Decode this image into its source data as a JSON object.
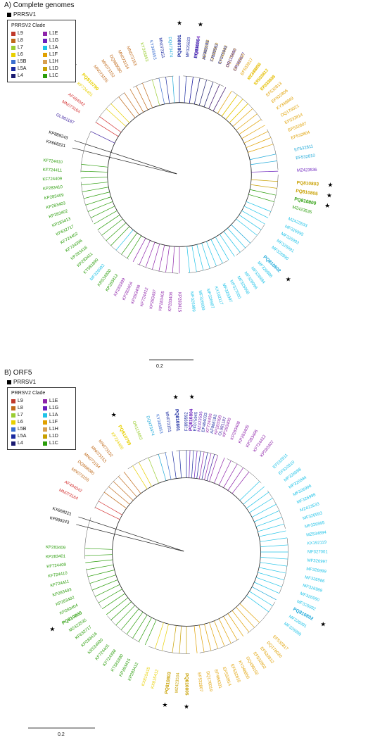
{
  "panelA": {
    "title": "A) Complete genomes",
    "legend_prrsv1": "PRRSV1",
    "legend_title": "PRRSV2 Clade",
    "scale": "0.2",
    "center": [
      255,
      248
    ],
    "radius": 165,
    "tips": [
      {
        "t": "PQ810804",
        "c": "#6a1fbd",
        "a": -82,
        "b": true,
        "s": true
      },
      {
        "t": "MZ423536",
        "c": "#b8860b",
        "a": -78
      },
      {
        "t": "EF532810",
        "c": "#e0a000",
        "a": -74
      },
      {
        "t": "KY348852",
        "c": "#e0a000",
        "a": -70
      },
      {
        "t": "DQ176019",
        "c": "#e0a000",
        "a": -66
      },
      {
        "t": "EF532815",
        "c": "#e0a000",
        "a": -62
      },
      {
        "t": "EF532817",
        "c": "#e0a000",
        "a": -58
      },
      {
        "t": "KY348850",
        "c": "#e0a000",
        "a": -54
      },
      {
        "t": "EF532812",
        "c": "#e0a000",
        "a": -50
      },
      {
        "t": "EF532809",
        "c": "#e0a000",
        "a": -46
      },
      {
        "t": "EF532813",
        "c": "#e0a000",
        "a": -42
      },
      {
        "t": "EF532806",
        "c": "#e0a000",
        "a": -38
      },
      {
        "t": "KY348849",
        "c": "#e0a000",
        "a": -34
      },
      {
        "t": "DQ176021",
        "c": "#e0a000",
        "a": -30
      },
      {
        "t": "EF532814",
        "c": "#e0a000",
        "a": -26
      },
      {
        "t": "EF532807",
        "c": "#e0a000",
        "a": -22
      },
      {
        "t": "EF532804",
        "c": "#e0a000",
        "a": -18
      },
      {
        "t": "EF532811",
        "c": "#1fa9d9",
        "a": -12
      },
      {
        "t": "EF532810",
        "c": "#1fa9d9",
        "a": -8
      },
      {
        "t": "MZ423536",
        "c": "#6a1fbd",
        "a": -2
      },
      {
        "t": "PQ810803",
        "c": "#c8a000",
        "a": 4,
        "b": true,
        "s": true
      },
      {
        "t": "PQ810805",
        "c": "#c8a000",
        "a": 8,
        "b": true,
        "s": true
      },
      {
        "t": "PQ810800",
        "c": "#2a9d0a",
        "a": 12,
        "b": true,
        "s": true
      },
      {
        "t": "MZ423535",
        "c": "#2a9d0a",
        "a": 16
      },
      {
        "t": "MZ423533",
        "c": "#1fc3e8",
        "a": 22
      },
      {
        "t": "MF326995",
        "c": "#1fc3e8",
        "a": 26
      },
      {
        "t": "MF326993",
        "c": "#1fc3e8",
        "a": 30
      },
      {
        "t": "MF326991",
        "c": "#1fc3e8",
        "a": 34
      },
      {
        "t": "MF326990",
        "c": "#1fc3e8",
        "a": 38
      },
      {
        "t": "PQ810802",
        "c": "#1fa9d9",
        "a": 44,
        "b": true,
        "s": true
      },
      {
        "t": "MF326988",
        "c": "#1fc3e8",
        "a": 48
      },
      {
        "t": "MF326994",
        "c": "#1fc3e8",
        "a": 52
      },
      {
        "t": "MF326996",
        "c": "#1fc3e8",
        "a": 56
      },
      {
        "t": "MF326998",
        "c": "#1fc3e8",
        "a": 60
      },
      {
        "t": "MF327000",
        "c": "#1fc3e8",
        "a": 64
      },
      {
        "t": "MF326997",
        "c": "#1fc3e8",
        "a": 68
      },
      {
        "t": "KX192117",
        "c": "#1fc3e8",
        "a": 72
      },
      {
        "t": "MF326987",
        "c": "#1fc3e8",
        "a": 76
      },
      {
        "t": "MF326999",
        "c": "#1fc3e8",
        "a": 80
      },
      {
        "t": "MF326989",
        "c": "#1fc3e8",
        "a": 84
      },
      {
        "t": "KP283415",
        "c": "#8e24aa",
        "a": 90
      },
      {
        "t": "KP283406",
        "c": "#8e24aa",
        "a": 94
      },
      {
        "t": "KP283405",
        "c": "#8e24aa",
        "a": 98
      },
      {
        "t": "KP283407",
        "c": "#8e24aa",
        "a": 102
      },
      {
        "t": "KF724412",
        "c": "#8e24aa",
        "a": 106
      },
      {
        "t": "KP283408",
        "c": "#8e24aa",
        "a": 110
      },
      {
        "t": "KP283404",
        "c": "#8e24aa",
        "a": 114
      },
      {
        "t": "KP283399",
        "c": "#8e24aa",
        "a": 118
      },
      {
        "t": "KP283412",
        "c": "#2a9d0a",
        "a": 122
      },
      {
        "t": "KR534930",
        "c": "#2a9d0a",
        "a": 126
      },
      {
        "t": "MF326992",
        "c": "#1fc3e8",
        "a": 130
      },
      {
        "t": "KT581890",
        "c": "#2a9d0a",
        "a": 134
      },
      {
        "t": "KP283411",
        "c": "#2a9d0a",
        "a": 138
      },
      {
        "t": "KP283416",
        "c": "#2a9d0a",
        "a": 142
      },
      {
        "t": "KF724396",
        "c": "#2a9d0a",
        "a": 146
      },
      {
        "t": "KF724402",
        "c": "#2a9d0a",
        "a": 150
      },
      {
        "t": "KF632717",
        "c": "#2a9d0a",
        "a": 154
      },
      {
        "t": "KP283413",
        "c": "#2a9d0a",
        "a": 158
      },
      {
        "t": "KP283402",
        "c": "#2a9d0a",
        "a": 162
      },
      {
        "t": "KP283403",
        "c": "#2a9d0a",
        "a": 166
      },
      {
        "t": "KP283409",
        "c": "#2a9d0a",
        "a": 170
      },
      {
        "t": "KP283410",
        "c": "#2a9d0a",
        "a": 174
      },
      {
        "t": "KF724409",
        "c": "#2a9d0a",
        "a": 178
      },
      {
        "t": "KF724411",
        "c": "#2a9d0a",
        "a": 182
      },
      {
        "t": "KF724410",
        "c": "#2a9d0a",
        "a": 186
      },
      {
        "t": "KX668221",
        "c": "#000000",
        "a": 194
      },
      {
        "t": "KP889243",
        "c": "#000000",
        "a": 198
      },
      {
        "t": "OL981187",
        "c": "#3b1e9e",
        "a": 206
      },
      {
        "t": "MN073164",
        "c": "#d32f2f",
        "a": 212
      },
      {
        "t": "AF494042",
        "c": "#d32f2f",
        "a": 216
      },
      {
        "t": "KF724401",
        "c": "#e8d000",
        "a": 222
      },
      {
        "t": "PQ810799",
        "c": "#e8d000",
        "a": 226,
        "b": true,
        "s": true
      },
      {
        "t": "MN073155",
        "c": "#c06a1a",
        "a": 232
      },
      {
        "t": "MN073152",
        "c": "#c06a1a",
        "a": 236
      },
      {
        "t": "DQ988080",
        "c": "#c06a1a",
        "a": 240
      },
      {
        "t": "MN073154",
        "c": "#c06a1a",
        "a": 244
      },
      {
        "t": "MN073153",
        "c": "#c06a1a",
        "a": 248
      },
      {
        "t": "KY348853",
        "c": "#9acd32",
        "a": 254
      },
      {
        "t": "KY348853",
        "c": "#3b6fd0",
        "a": 258
      },
      {
        "t": "MN073151",
        "c": "#1a2aa0",
        "a": 262
      },
      {
        "t": "DQ473474",
        "c": "#1fa9d9",
        "a": 266
      },
      {
        "t": "PQ810801",
        "c": "#1a2aa0",
        "a": 270,
        "b": true,
        "s": true
      },
      {
        "t": "MF326633",
        "c": "#1a2aa0",
        "a": 274
      },
      {
        "t": "EF484033",
        "c": "#1a2aa0",
        "a": 278
      },
      {
        "t": "AF066183",
        "c": "#1a2aa0",
        "a": 282
      },
      {
        "t": "FJ899592",
        "c": "#1a2aa0",
        "a": 286
      },
      {
        "t": "EF075945",
        "c": "#1a2aa0",
        "a": 290
      },
      {
        "t": "OR115680",
        "c": "#3b1e9e",
        "a": 294
      },
      {
        "t": "OR365677",
        "c": "#3b1e9e",
        "a": 298
      },
      {
        "t": "MZ433234",
        "c": "#e8d000",
        "a": 306
      },
      {
        "t": "KX815412",
        "c": "#e8d000",
        "a": 310
      },
      {
        "t": "KX815415",
        "c": "#e8d000",
        "a": 314
      }
    ]
  },
  "panelB": {
    "title": "B) ORF5",
    "legend_prrsv1": "PRRSV1",
    "legend_title": "PRRSV2 Clade",
    "scale": "0.2",
    "center": [
      265,
      262
    ],
    "radius": 170,
    "tips": [
      {
        "t": "PQ810804",
        "c": "#6a1fbd",
        "a": -88,
        "b": true,
        "s": true
      },
      {
        "t": "MZ423536",
        "c": "#6a1fbd",
        "a": -84
      },
      {
        "t": "KF724406",
        "c": "#8e24aa",
        "a": -80
      },
      {
        "t": "KP283399",
        "c": "#8e24aa",
        "a": -76
      },
      {
        "t": "KP283400",
        "c": "#8e24aa",
        "a": -72
      },
      {
        "t": "KP283408",
        "c": "#8e24aa",
        "a": -68
      },
      {
        "t": "KP283405",
        "c": "#8e24aa",
        "a": -64
      },
      {
        "t": "KP283406",
        "c": "#8e24aa",
        "a": -60
      },
      {
        "t": "KF724412",
        "c": "#8e24aa",
        "a": -56
      },
      {
        "t": "KP283407",
        "c": "#8e24aa",
        "a": -52
      },
      {
        "t": "EF532811",
        "c": "#1fc3e8",
        "a": -44
      },
      {
        "t": "EF532810",
        "c": "#1fc3e8",
        "a": -40
      },
      {
        "t": "MF326988",
        "c": "#1fc3e8",
        "a": -36
      },
      {
        "t": "MF326994",
        "c": "#1fc3e8",
        "a": -32
      },
      {
        "t": "MF326996",
        "c": "#1fc3e8",
        "a": -28
      },
      {
        "t": "MF326998",
        "c": "#1fc3e8",
        "a": -24
      },
      {
        "t": "MZ423533",
        "c": "#1fc3e8",
        "a": -20
      },
      {
        "t": "MF326993",
        "c": "#1fc3e8",
        "a": -16
      },
      {
        "t": "MF326995",
        "c": "#1fc3e8",
        "a": -12
      },
      {
        "t": "MZ534894",
        "c": "#1fc3e8",
        "a": -8
      },
      {
        "t": "KX192119",
        "c": "#1fc3e8",
        "a": -4
      },
      {
        "t": "MF327001",
        "c": "#1fc3e8",
        "a": 0
      },
      {
        "t": "MF326997",
        "c": "#1fc3e8",
        "a": 4
      },
      {
        "t": "MF326999",
        "c": "#1fc3e8",
        "a": 8
      },
      {
        "t": "MF326986",
        "c": "#1fc3e8",
        "a": 12
      },
      {
        "t": "MF326989",
        "c": "#1fc3e8",
        "a": 16
      },
      {
        "t": "MF326990",
        "c": "#1fc3e8",
        "a": 20
      },
      {
        "t": "MF326992",
        "c": "#1fc3e8",
        "a": 24
      },
      {
        "t": "PQ810802",
        "c": "#1fa9d9",
        "a": 28,
        "b": true,
        "s": true
      },
      {
        "t": "MF326991",
        "c": "#1fc3e8",
        "a": 32
      },
      {
        "t": "MF326999",
        "c": "#1fc3e8",
        "a": 36
      },
      {
        "t": "EF532817",
        "c": "#e0a000",
        "a": 44
      },
      {
        "t": "DQ176020",
        "c": "#e0a000",
        "a": 48
      },
      {
        "t": "EF532812",
        "c": "#e0a000",
        "a": 52
      },
      {
        "t": "EF532802",
        "c": "#e0a000",
        "a": 56
      },
      {
        "t": "GQ499192",
        "c": "#e0a000",
        "a": 60
      },
      {
        "t": "KY348850",
        "c": "#e0a000",
        "a": 64
      },
      {
        "t": "EF532815",
        "c": "#e0a000",
        "a": 68
      },
      {
        "t": "EF532814",
        "c": "#e0a000",
        "a": 72
      },
      {
        "t": "EF484031",
        "c": "#e0a000",
        "a": 76
      },
      {
        "t": "DQ176019",
        "c": "#e0a000",
        "a": 80
      },
      {
        "t": "EF532807",
        "c": "#e0a000",
        "a": 84
      },
      {
        "t": "PQ810805",
        "c": "#c8a000",
        "a": 90,
        "b": true,
        "s": true
      },
      {
        "t": "MZ423534",
        "c": "#c8a000",
        "a": 94
      },
      {
        "t": "PQ810803",
        "c": "#c8a000",
        "a": 98,
        "b": true,
        "s": true
      },
      {
        "t": "KX815412",
        "c": "#e8d000",
        "a": 104
      },
      {
        "t": "KX815415",
        "c": "#e8d000",
        "a": 108
      },
      {
        "t": "KP283412",
        "c": "#2a9d0a",
        "a": 114
      },
      {
        "t": "KP283415",
        "c": "#2a9d0a",
        "a": 118
      },
      {
        "t": "KT581890",
        "c": "#2a9d0a",
        "a": 122
      },
      {
        "t": "KF724398",
        "c": "#2a9d0a",
        "a": 126
      },
      {
        "t": "KF724401",
        "c": "#2a9d0a",
        "a": 130
      },
      {
        "t": "KR534930",
        "c": "#2a9d0a",
        "a": 134
      },
      {
        "t": "KP283416",
        "c": "#2a9d0a",
        "a": 138
      },
      {
        "t": "KF632717",
        "c": "#2a9d0a",
        "a": 142
      },
      {
        "t": "MZ423535",
        "c": "#2a9d0a",
        "a": 146
      },
      {
        "t": "PQ810800",
        "c": "#2a9d0a",
        "a": 150,
        "b": true,
        "s": true
      },
      {
        "t": "KP283404",
        "c": "#2a9d0a",
        "a": 154
      },
      {
        "t": "KP283402",
        "c": "#2a9d0a",
        "a": 158
      },
      {
        "t": "KP283403",
        "c": "#2a9d0a",
        "a": 162
      },
      {
        "t": "KF724411",
        "c": "#2a9d0a",
        "a": 166
      },
      {
        "t": "KF724410",
        "c": "#2a9d0a",
        "a": 170
      },
      {
        "t": "KF724409",
        "c": "#2a9d0a",
        "a": 174
      },
      {
        "t": "KP283401",
        "c": "#2a9d0a",
        "a": 178
      },
      {
        "t": "KP283409",
        "c": "#2a9d0a",
        "a": 182
      },
      {
        "t": "KP889243",
        "c": "#000000",
        "a": 194
      },
      {
        "t": "KX668221",
        "c": "#000000",
        "a": 198
      },
      {
        "t": "MN073164",
        "c": "#d32f2f",
        "a": 206
      },
      {
        "t": "AF494042",
        "c": "#d32f2f",
        "a": 210
      },
      {
        "t": "MN073155",
        "c": "#c06a1a",
        "a": 216
      },
      {
        "t": "DQ988080",
        "c": "#c06a1a",
        "a": 220
      },
      {
        "t": "MN073154",
        "c": "#c06a1a",
        "a": 224
      },
      {
        "t": "MN073153",
        "c": "#c06a1a",
        "a": 228
      },
      {
        "t": "MN073152",
        "c": "#c06a1a",
        "a": 232
      },
      {
        "t": "KF724400",
        "c": "#e8d000",
        "a": 238
      },
      {
        "t": "PQ810799",
        "c": "#e8d000",
        "a": 242,
        "b": true,
        "s": true
      },
      {
        "t": "OR115683",
        "c": "#9acd32",
        "a": 248
      },
      {
        "t": "DQ473474",
        "c": "#1fa9d9",
        "a": 254
      },
      {
        "t": "KY348853",
        "c": "#3b6fd0",
        "a": 258
      },
      {
        "t": "MN073151",
        "c": "#1a2aa0",
        "a": 262
      },
      {
        "t": "PQ810801",
        "c": "#1a2aa0",
        "a": 266,
        "b": true,
        "s": true
      },
      {
        "t": "FJ899592",
        "c": "#1a2aa0",
        "a": 270
      },
      {
        "t": "EF075945",
        "c": "#1a2aa0",
        "a": 274
      },
      {
        "t": "EF484033",
        "c": "#1a2aa0",
        "a": 278
      },
      {
        "t": "AF066183",
        "c": "#1a2aa0",
        "a": 282
      },
      {
        "t": "OL981187",
        "c": "#3b1e9e",
        "a": 286
      }
    ]
  },
  "legend": {
    "prrsv1_color": "#000000",
    "clades": [
      {
        "name": "L9",
        "color": "#c0392b"
      },
      {
        "name": "L1E",
        "color": "#8e24aa"
      },
      {
        "name": "L8",
        "color": "#c06a1a"
      },
      {
        "name": "L1G",
        "color": "#6a1fbd"
      },
      {
        "name": "L7",
        "color": "#9acd32"
      },
      {
        "name": "L1A",
        "color": "#1fc3e8"
      },
      {
        "name": "L6",
        "color": "#e8d000"
      },
      {
        "name": "L1F",
        "color": "#e0a000"
      },
      {
        "name": "L5B",
        "color": "#3b6fd0"
      },
      {
        "name": "L1H",
        "color": "#d8a050"
      },
      {
        "name": "L5A",
        "color": "#1a2aa0"
      },
      {
        "name": "L1D",
        "color": "#c8a000"
      },
      {
        "name": "L4",
        "color": "#1a1a70"
      },
      {
        "name": "L1C",
        "color": "#2a9d0a"
      }
    ]
  }
}
